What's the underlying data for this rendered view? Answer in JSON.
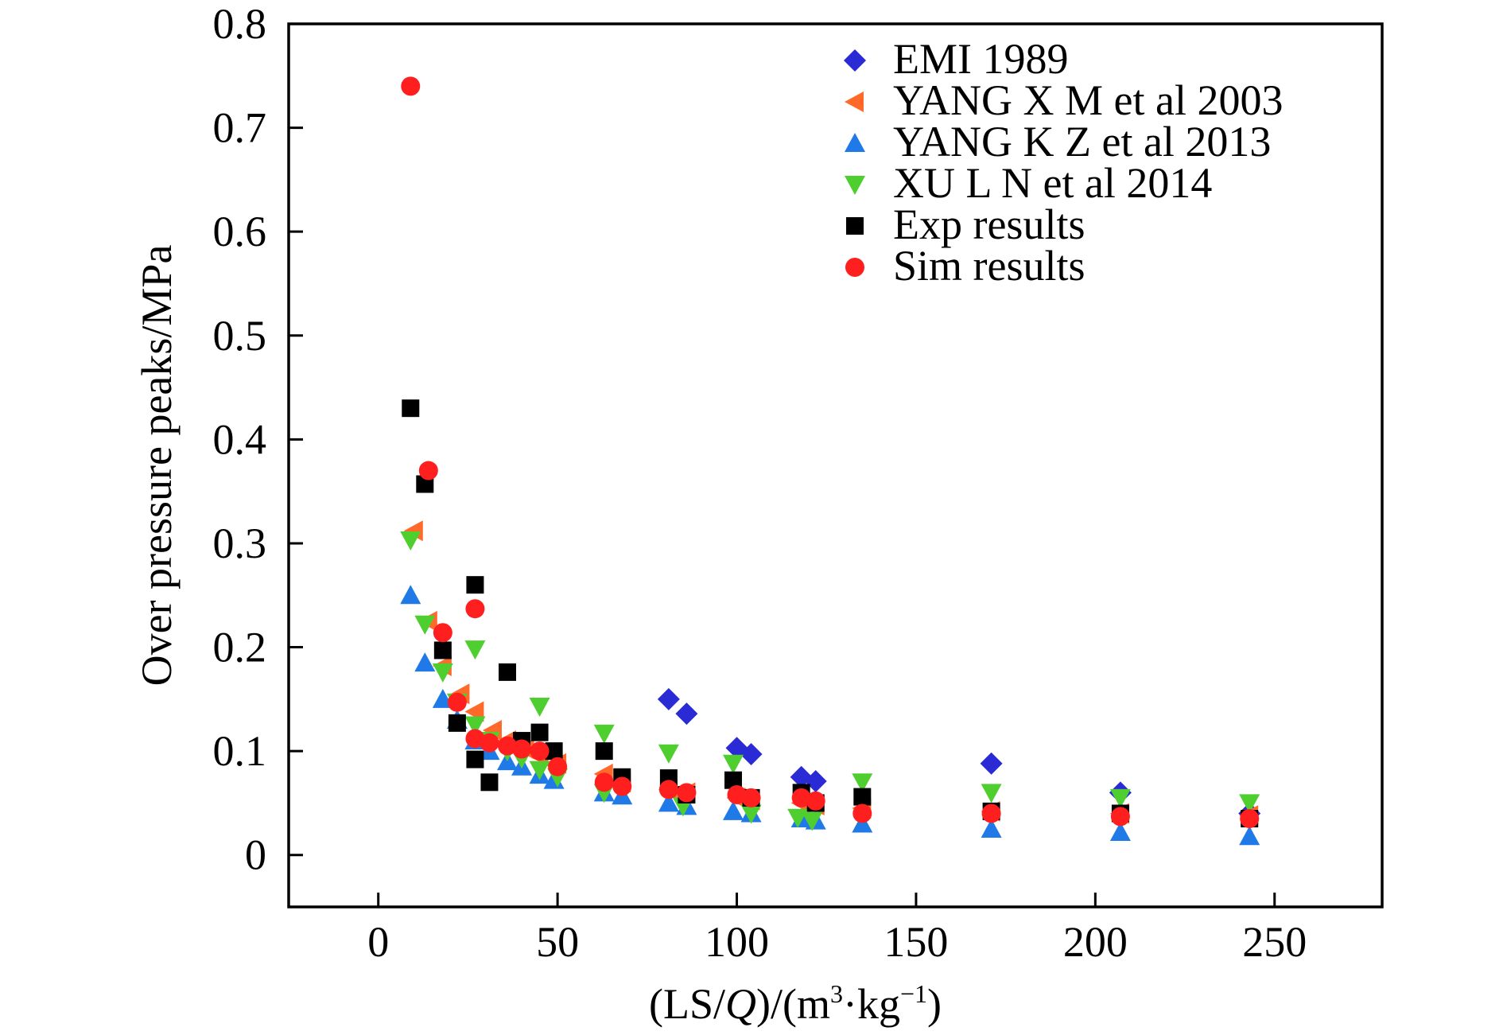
{
  "chart_data": {
    "type": "scatter",
    "xlabel": "(LS/Q)/(m³·kg⁻¹)",
    "xlabel_parts": {
      "pre": "(LS/",
      "italic": "Q",
      "mid": ")/(m",
      "sup1": "3",
      "mid2": "·kg",
      "sup2": "−1",
      "post": ")"
    },
    "ylabel": "Over pressure peaks/MPa",
    "xlim": [
      -25,
      280
    ],
    "ylim": [
      -0.05,
      0.8
    ],
    "xticks": [
      0,
      50,
      100,
      150,
      200,
      250
    ],
    "xtick_labels": [
      "0",
      "50",
      "100",
      "150",
      "200",
      "250"
    ],
    "yticks": [
      0,
      0.1,
      0.2,
      0.3,
      0.4,
      0.5,
      0.6,
      0.7,
      0.8
    ],
    "ytick_labels": [
      "0",
      "0.1",
      "0.2",
      "0.3",
      "0.4",
      "0.5",
      "0.6",
      "0.7",
      "0.8"
    ],
    "grid": false,
    "legend_position": "top-right",
    "series": [
      {
        "name": "EMI 1989",
        "marker": "diamond",
        "color": "#2b2bd6",
        "points": [
          [
            81,
            0.15
          ],
          [
            86,
            0.136
          ],
          [
            100,
            0.103
          ],
          [
            104,
            0.097
          ],
          [
            118,
            0.075
          ],
          [
            122,
            0.071
          ],
          [
            171,
            0.088
          ],
          [
            207,
            0.06
          ],
          [
            243,
            0.04
          ]
        ]
      },
      {
        "name": "YANG X M et al 2003",
        "marker": "triangle-left",
        "color": "#ff6a2a",
        "points": [
          [
            10,
            0.312
          ],
          [
            14,
            0.225
          ],
          [
            18,
            0.182
          ],
          [
            23,
            0.155
          ],
          [
            27,
            0.138
          ],
          [
            32,
            0.12
          ],
          [
            36,
            0.11
          ],
          [
            41,
            0.102
          ],
          [
            45,
            0.095
          ],
          [
            50,
            0.088
          ],
          [
            63,
            0.078
          ],
          [
            68,
            0.07
          ],
          [
            81,
            0.063
          ],
          [
            86,
            0.06
          ],
          [
            100,
            0.055
          ],
          [
            104,
            0.053
          ],
          [
            118,
            0.05
          ],
          [
            122,
            0.048
          ],
          [
            135,
            0.045
          ],
          [
            171,
            0.042
          ],
          [
            207,
            0.04
          ],
          [
            243,
            0.038
          ]
        ]
      },
      {
        "name": "YANG K Z et al 2013",
        "marker": "triangle-up",
        "color": "#1f7ae8",
        "points": [
          [
            9,
            0.25
          ],
          [
            13,
            0.185
          ],
          [
            18,
            0.15
          ],
          [
            22,
            0.13
          ],
          [
            27,
            0.11
          ],
          [
            31,
            0.1
          ],
          [
            36,
            0.09
          ],
          [
            40,
            0.085
          ],
          [
            45,
            0.077
          ],
          [
            49,
            0.072
          ],
          [
            63,
            0.06
          ],
          [
            68,
            0.057
          ],
          [
            81,
            0.05
          ],
          [
            86,
            0.047
          ],
          [
            99,
            0.042
          ],
          [
            104,
            0.04
          ],
          [
            118,
            0.035
          ],
          [
            122,
            0.033
          ],
          [
            135,
            0.03
          ],
          [
            171,
            0.025
          ],
          [
            207,
            0.022
          ],
          [
            243,
            0.018
          ]
        ]
      },
      {
        "name": "XU L N et al 2014",
        "marker": "triangle-down",
        "color": "#4fcf2f",
        "points": [
          [
            9,
            0.303
          ],
          [
            13,
            0.222
          ],
          [
            18,
            0.176
          ],
          [
            22,
            0.147
          ],
          [
            27,
            0.198
          ],
          [
            27,
            0.125
          ],
          [
            31,
            0.11
          ],
          [
            36,
            0.1
          ],
          [
            40,
            0.093
          ],
          [
            45,
            0.143
          ],
          [
            45,
            0.082
          ],
          [
            50,
            0.075
          ],
          [
            63,
            0.117
          ],
          [
            63,
            0.06
          ],
          [
            81,
            0.098
          ],
          [
            85,
            0.047
          ],
          [
            99,
            0.088
          ],
          [
            104,
            0.04
          ],
          [
            117,
            0.036
          ],
          [
            121,
            0.033
          ],
          [
            135,
            0.07
          ],
          [
            171,
            0.06
          ],
          [
            207,
            0.055
          ],
          [
            243,
            0.05
          ]
        ]
      },
      {
        "name": "Exp results",
        "marker": "square",
        "color": "#000000",
        "points": [
          [
            9,
            0.43
          ],
          [
            13,
            0.357
          ],
          [
            18,
            0.197
          ],
          [
            22,
            0.127
          ],
          [
            27,
            0.26
          ],
          [
            27,
            0.092
          ],
          [
            31,
            0.07
          ],
          [
            36,
            0.176
          ],
          [
            40,
            0.11
          ],
          [
            45,
            0.118
          ],
          [
            49,
            0.1
          ],
          [
            63,
            0.1
          ],
          [
            68,
            0.075
          ],
          [
            81,
            0.074
          ],
          [
            86,
            0.058
          ],
          [
            99,
            0.072
          ],
          [
            104,
            0.055
          ],
          [
            118,
            0.06
          ],
          [
            122,
            0.05
          ],
          [
            135,
            0.056
          ],
          [
            171,
            0.042
          ],
          [
            207,
            0.04
          ],
          [
            243,
            0.035
          ]
        ]
      },
      {
        "name": "Sim results",
        "marker": "circle",
        "color": "#ff1f1f",
        "points": [
          [
            9,
            0.74
          ],
          [
            14,
            0.37
          ],
          [
            18,
            0.214
          ],
          [
            22,
            0.147
          ],
          [
            27,
            0.237
          ],
          [
            27,
            0.112
          ],
          [
            31,
            0.108
          ],
          [
            36,
            0.105
          ],
          [
            40,
            0.102
          ],
          [
            45,
            0.1
          ],
          [
            50,
            0.085
          ],
          [
            63,
            0.07
          ],
          [
            68,
            0.066
          ],
          [
            81,
            0.063
          ],
          [
            86,
            0.06
          ],
          [
            100,
            0.058
          ],
          [
            104,
            0.055
          ],
          [
            118,
            0.055
          ],
          [
            122,
            0.052
          ],
          [
            135,
            0.04
          ],
          [
            171,
            0.04
          ],
          [
            207,
            0.037
          ],
          [
            243,
            0.035
          ]
        ]
      }
    ]
  }
}
